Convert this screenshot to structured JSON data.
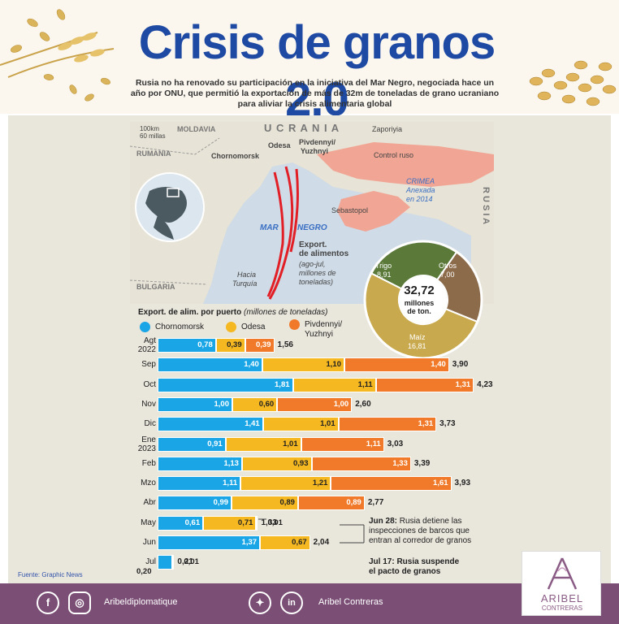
{
  "header": {
    "title": "Crisis de granos 2.0",
    "subtitle": "Rusia no ha renovado su participación en la iniciativa del Mar Negro, negociada hace un año por ONU, que permitió la exportación de más de 32m de toneladas de grano ucraniano para aliviar la crisis alimentaria global"
  },
  "map": {
    "scale_km": "100km",
    "scale_mi": "60 millas",
    "labels": {
      "moldavia": "MOLDAVIA",
      "ucrania": "U C R A N I A",
      "rumania": "RUMANIA",
      "bulgaria": "BULGARIA",
      "rusia": "R U S I A",
      "mar": "MAR",
      "negro": "NEGRO",
      "zaporiyia": "Zaporiyia",
      "control_ruso": "Control ruso",
      "crimea": "CRIMEA",
      "anexada": "Anexada",
      "en2014": "en 2014",
      "sebastopol": "Sebastopol",
      "odesa": "Odesa",
      "chornomorsk": "Chornomorsk",
      "pivdennyi": "Pivdennyi/",
      "yuzhnyi": "Yuzhnyi",
      "hacia": "Hacia",
      "turquia": "Turquía",
      "export_title": "Export.",
      "export_title2": "de alimentos",
      "export_sub": "(ago-jul,",
      "export_sub2": "millones de",
      "export_sub3": "toneladas)"
    },
    "donut": {
      "total": "32,72",
      "unit1": "millones",
      "unit2": "de ton.",
      "slices": [
        {
          "name": "Trigo",
          "value": 8.91,
          "label": "8,91",
          "color": "#5b7a3a"
        },
        {
          "name": "Otros",
          "value": 7.0,
          "label": "7,00",
          "color": "#8b6b4a"
        },
        {
          "name": "Maíz",
          "value": 16.81,
          "label": "16,81",
          "color": "#c9a94d"
        }
      ]
    }
  },
  "chart": {
    "title": "Export. de alim. por puerto",
    "title_unit": "(millones de toneladas)",
    "source": "Fuente: Graphic News",
    "annotations": {
      "jun28_bold": "Jun 28:",
      "jun28_text1": " Rusia detiene las",
      "jun28_text2": "inspecciones de barcos que",
      "jun28_text3": "entran al corredor de granos",
      "jul17_line1": "Jul 17: Rusia suspende",
      "jul17_line2": "el pacto de granos"
    }
  },
  "chart_data": {
    "type": "bar",
    "orientation": "horizontal",
    "stacked": true,
    "categories": [
      "Agt 2022",
      "Sep",
      "Oct",
      "Nov",
      "Dic",
      "Ene 2023",
      "Feb",
      "Mzo",
      "Abr",
      "May",
      "Jun",
      "Jul"
    ],
    "category_lines": [
      [
        "Agt",
        "2022"
      ],
      [
        "Sep"
      ],
      [
        "Oct"
      ],
      [
        "Nov"
      ],
      [
        "Dic"
      ],
      [
        "Ene",
        "2023"
      ],
      [
        "Feb"
      ],
      [
        "Mzo"
      ],
      [
        "Abr"
      ],
      [
        "May"
      ],
      [
        "Jun"
      ],
      [
        "Jul"
      ]
    ],
    "series": [
      {
        "name": "Chornomorsk",
        "color": "#1aa6e6",
        "values": [
          0.78,
          1.4,
          1.81,
          1.0,
          1.41,
          0.91,
          1.13,
          1.11,
          0.99,
          0.61,
          1.37,
          0.2
        ],
        "labels": [
          "0,78",
          "1,40",
          "1,81",
          "1,00",
          "1,41",
          "0,91",
          "1,13",
          "1,11",
          "0,99",
          "0,61",
          "1,37",
          "0,20"
        ]
      },
      {
        "name": "Odesa",
        "color": "#f5b820",
        "values": [
          0.39,
          1.1,
          1.11,
          0.6,
          1.01,
          1.01,
          0.93,
          1.21,
          0.89,
          0.71,
          0.67,
          0.01
        ],
        "labels": [
          "0,39",
          "1,10",
          "1,11",
          "0,60",
          "1,01",
          "1,01",
          "0,93",
          "1,21",
          "0,89",
          "0,71",
          "0,67",
          "0,01"
        ]
      },
      {
        "name": "Pivdennyi/ Yuzhnyi",
        "name_lines": [
          "Pivdennyi/",
          "Yuzhnyi"
        ],
        "color": "#f07a2a",
        "values": [
          0.39,
          1.4,
          1.31,
          1.0,
          1.31,
          1.11,
          1.33,
          1.61,
          0.89,
          0.01,
          0,
          0
        ],
        "labels": [
          "0,39",
          "1,40",
          "1,31",
          "1,00",
          "1,31",
          "1,11",
          "1,33",
          "1,61",
          "0,89",
          "0,01",
          "",
          ""
        ]
      }
    ],
    "totals": [
      "1,56",
      "3,90",
      "4,23",
      "2,60",
      "3,73",
      "3,03",
      "3,39",
      "3,93",
      "2,77",
      "1,33",
      "2,04",
      "0,21"
    ],
    "legend": "top"
  },
  "footer": {
    "handle1": "Aribeldiplomatique",
    "handle2": "Aribel Contreras",
    "icons": [
      "facebook-icon",
      "instagram-icon",
      "twitter-icon",
      "linkedin-icon"
    ]
  },
  "logo": {
    "name": "ARIBEL",
    "sub": "CONTRERAS"
  }
}
